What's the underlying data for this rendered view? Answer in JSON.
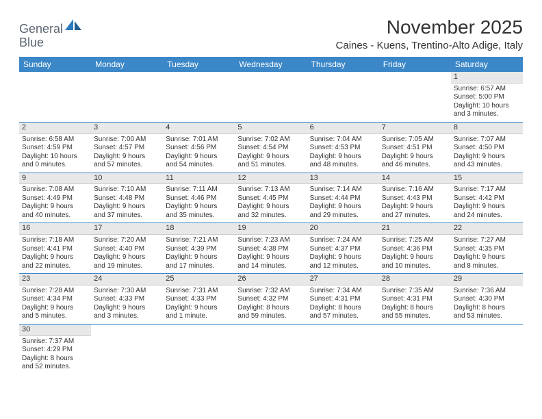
{
  "logo": {
    "word1": "General",
    "word2": "Blue"
  },
  "title": "November 2025",
  "subtitle": "Caines - Kuens, Trentino-Alto Adige, Italy",
  "colors": {
    "header_bg": "#3b87c8",
    "header_text": "#ffffff",
    "daynum_bg": "#e8e8e8",
    "row_divider": "#3b87c8",
    "text": "#333333",
    "logo_gray": "#5a6570",
    "logo_blue": "#2b7bbf",
    "page_bg": "#ffffff"
  },
  "day_names": [
    "Sunday",
    "Monday",
    "Tuesday",
    "Wednesday",
    "Thursday",
    "Friday",
    "Saturday"
  ],
  "weeks": [
    [
      null,
      null,
      null,
      null,
      null,
      null,
      {
        "n": "1",
        "sr": "Sunrise: 6:57 AM",
        "ss": "Sunset: 5:00 PM",
        "dl1": "Daylight: 10 hours",
        "dl2": "and 3 minutes."
      }
    ],
    [
      {
        "n": "2",
        "sr": "Sunrise: 6:58 AM",
        "ss": "Sunset: 4:59 PM",
        "dl1": "Daylight: 10 hours",
        "dl2": "and 0 minutes."
      },
      {
        "n": "3",
        "sr": "Sunrise: 7:00 AM",
        "ss": "Sunset: 4:57 PM",
        "dl1": "Daylight: 9 hours",
        "dl2": "and 57 minutes."
      },
      {
        "n": "4",
        "sr": "Sunrise: 7:01 AM",
        "ss": "Sunset: 4:56 PM",
        "dl1": "Daylight: 9 hours",
        "dl2": "and 54 minutes."
      },
      {
        "n": "5",
        "sr": "Sunrise: 7:02 AM",
        "ss": "Sunset: 4:54 PM",
        "dl1": "Daylight: 9 hours",
        "dl2": "and 51 minutes."
      },
      {
        "n": "6",
        "sr": "Sunrise: 7:04 AM",
        "ss": "Sunset: 4:53 PM",
        "dl1": "Daylight: 9 hours",
        "dl2": "and 48 minutes."
      },
      {
        "n": "7",
        "sr": "Sunrise: 7:05 AM",
        "ss": "Sunset: 4:51 PM",
        "dl1": "Daylight: 9 hours",
        "dl2": "and 46 minutes."
      },
      {
        "n": "8",
        "sr": "Sunrise: 7:07 AM",
        "ss": "Sunset: 4:50 PM",
        "dl1": "Daylight: 9 hours",
        "dl2": "and 43 minutes."
      }
    ],
    [
      {
        "n": "9",
        "sr": "Sunrise: 7:08 AM",
        "ss": "Sunset: 4:49 PM",
        "dl1": "Daylight: 9 hours",
        "dl2": "and 40 minutes."
      },
      {
        "n": "10",
        "sr": "Sunrise: 7:10 AM",
        "ss": "Sunset: 4:48 PM",
        "dl1": "Daylight: 9 hours",
        "dl2": "and 37 minutes."
      },
      {
        "n": "11",
        "sr": "Sunrise: 7:11 AM",
        "ss": "Sunset: 4:46 PM",
        "dl1": "Daylight: 9 hours",
        "dl2": "and 35 minutes."
      },
      {
        "n": "12",
        "sr": "Sunrise: 7:13 AM",
        "ss": "Sunset: 4:45 PM",
        "dl1": "Daylight: 9 hours",
        "dl2": "and 32 minutes."
      },
      {
        "n": "13",
        "sr": "Sunrise: 7:14 AM",
        "ss": "Sunset: 4:44 PM",
        "dl1": "Daylight: 9 hours",
        "dl2": "and 29 minutes."
      },
      {
        "n": "14",
        "sr": "Sunrise: 7:16 AM",
        "ss": "Sunset: 4:43 PM",
        "dl1": "Daylight: 9 hours",
        "dl2": "and 27 minutes."
      },
      {
        "n": "15",
        "sr": "Sunrise: 7:17 AM",
        "ss": "Sunset: 4:42 PM",
        "dl1": "Daylight: 9 hours",
        "dl2": "and 24 minutes."
      }
    ],
    [
      {
        "n": "16",
        "sr": "Sunrise: 7:18 AM",
        "ss": "Sunset: 4:41 PM",
        "dl1": "Daylight: 9 hours",
        "dl2": "and 22 minutes."
      },
      {
        "n": "17",
        "sr": "Sunrise: 7:20 AM",
        "ss": "Sunset: 4:40 PM",
        "dl1": "Daylight: 9 hours",
        "dl2": "and 19 minutes."
      },
      {
        "n": "18",
        "sr": "Sunrise: 7:21 AM",
        "ss": "Sunset: 4:39 PM",
        "dl1": "Daylight: 9 hours",
        "dl2": "and 17 minutes."
      },
      {
        "n": "19",
        "sr": "Sunrise: 7:23 AM",
        "ss": "Sunset: 4:38 PM",
        "dl1": "Daylight: 9 hours",
        "dl2": "and 14 minutes."
      },
      {
        "n": "20",
        "sr": "Sunrise: 7:24 AM",
        "ss": "Sunset: 4:37 PM",
        "dl1": "Daylight: 9 hours",
        "dl2": "and 12 minutes."
      },
      {
        "n": "21",
        "sr": "Sunrise: 7:25 AM",
        "ss": "Sunset: 4:36 PM",
        "dl1": "Daylight: 9 hours",
        "dl2": "and 10 minutes."
      },
      {
        "n": "22",
        "sr": "Sunrise: 7:27 AM",
        "ss": "Sunset: 4:35 PM",
        "dl1": "Daylight: 9 hours",
        "dl2": "and 8 minutes."
      }
    ],
    [
      {
        "n": "23",
        "sr": "Sunrise: 7:28 AM",
        "ss": "Sunset: 4:34 PM",
        "dl1": "Daylight: 9 hours",
        "dl2": "and 5 minutes."
      },
      {
        "n": "24",
        "sr": "Sunrise: 7:30 AM",
        "ss": "Sunset: 4:33 PM",
        "dl1": "Daylight: 9 hours",
        "dl2": "and 3 minutes."
      },
      {
        "n": "25",
        "sr": "Sunrise: 7:31 AM",
        "ss": "Sunset: 4:33 PM",
        "dl1": "Daylight: 9 hours",
        "dl2": "and 1 minute."
      },
      {
        "n": "26",
        "sr": "Sunrise: 7:32 AM",
        "ss": "Sunset: 4:32 PM",
        "dl1": "Daylight: 8 hours",
        "dl2": "and 59 minutes."
      },
      {
        "n": "27",
        "sr": "Sunrise: 7:34 AM",
        "ss": "Sunset: 4:31 PM",
        "dl1": "Daylight: 8 hours",
        "dl2": "and 57 minutes."
      },
      {
        "n": "28",
        "sr": "Sunrise: 7:35 AM",
        "ss": "Sunset: 4:31 PM",
        "dl1": "Daylight: 8 hours",
        "dl2": "and 55 minutes."
      },
      {
        "n": "29",
        "sr": "Sunrise: 7:36 AM",
        "ss": "Sunset: 4:30 PM",
        "dl1": "Daylight: 8 hours",
        "dl2": "and 53 minutes."
      }
    ],
    [
      {
        "n": "30",
        "sr": "Sunrise: 7:37 AM",
        "ss": "Sunset: 4:29 PM",
        "dl1": "Daylight: 8 hours",
        "dl2": "and 52 minutes."
      },
      null,
      null,
      null,
      null,
      null,
      null
    ]
  ]
}
